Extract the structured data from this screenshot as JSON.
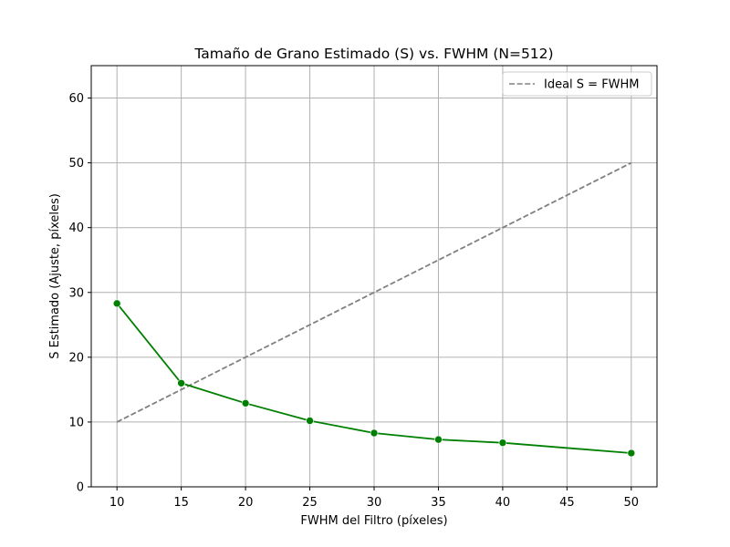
{
  "chart_data": {
    "type": "line",
    "title": "Tamaño de Grano Estimado (S) vs. FWHM (N=512)",
    "xlabel": "FWHM del Filtro (píxeles)",
    "ylabel": "S Estimado (Ajuste, píxeles)",
    "xlim": [
      8,
      52
    ],
    "ylim": [
      0,
      65
    ],
    "xticks": [
      10,
      15,
      20,
      25,
      30,
      35,
      40,
      45,
      50
    ],
    "yticks": [
      0,
      10,
      20,
      30,
      40,
      50,
      60
    ],
    "grid": true,
    "legend_position": "top-right",
    "series": [
      {
        "name": "",
        "color": "#008000",
        "style": "solid",
        "marker": "circle",
        "x": [
          10,
          15,
          20,
          25,
          30,
          35,
          40,
          50
        ],
        "y": [
          28.3,
          16.0,
          12.9,
          10.2,
          8.3,
          7.3,
          6.8,
          5.2
        ]
      },
      {
        "name": "Ideal S = FWHM",
        "color": "#808080",
        "style": "dashed",
        "marker": "none",
        "x": [
          10,
          50
        ],
        "y": [
          10,
          50
        ]
      }
    ]
  }
}
